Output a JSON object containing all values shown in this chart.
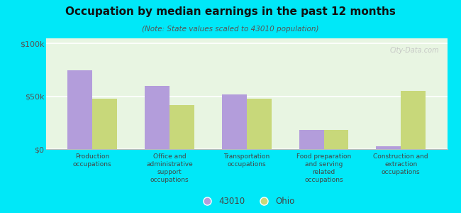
{
  "title": "Occupation by median earnings in the past 12 months",
  "subtitle": "(Note: State values scaled to 43010 population)",
  "categories": [
    "Production\noccupations",
    "Office and\nadministrative\nsupport\noccupations",
    "Transportation\noccupations",
    "Food preparation\nand serving\nrelated\noccupations",
    "Construction and\nextraction\noccupations"
  ],
  "values_43010": [
    75000,
    60000,
    52000,
    18000,
    3000
  ],
  "values_ohio": [
    48000,
    42000,
    48000,
    18000,
    55000
  ],
  "color_43010": "#b39ddb",
  "color_ohio": "#c8d87a",
  "background_color": "#00e8f8",
  "plot_bg": "#e8f5e2",
  "legend_43010": "43010",
  "legend_ohio": "Ohio",
  "yticks": [
    0,
    50000,
    100000
  ],
  "ytick_labels": [
    "$0",
    "$50k",
    "$100k"
  ],
  "ylim": [
    0,
    105000
  ],
  "bar_width": 0.32,
  "watermark": "City-Data.com"
}
